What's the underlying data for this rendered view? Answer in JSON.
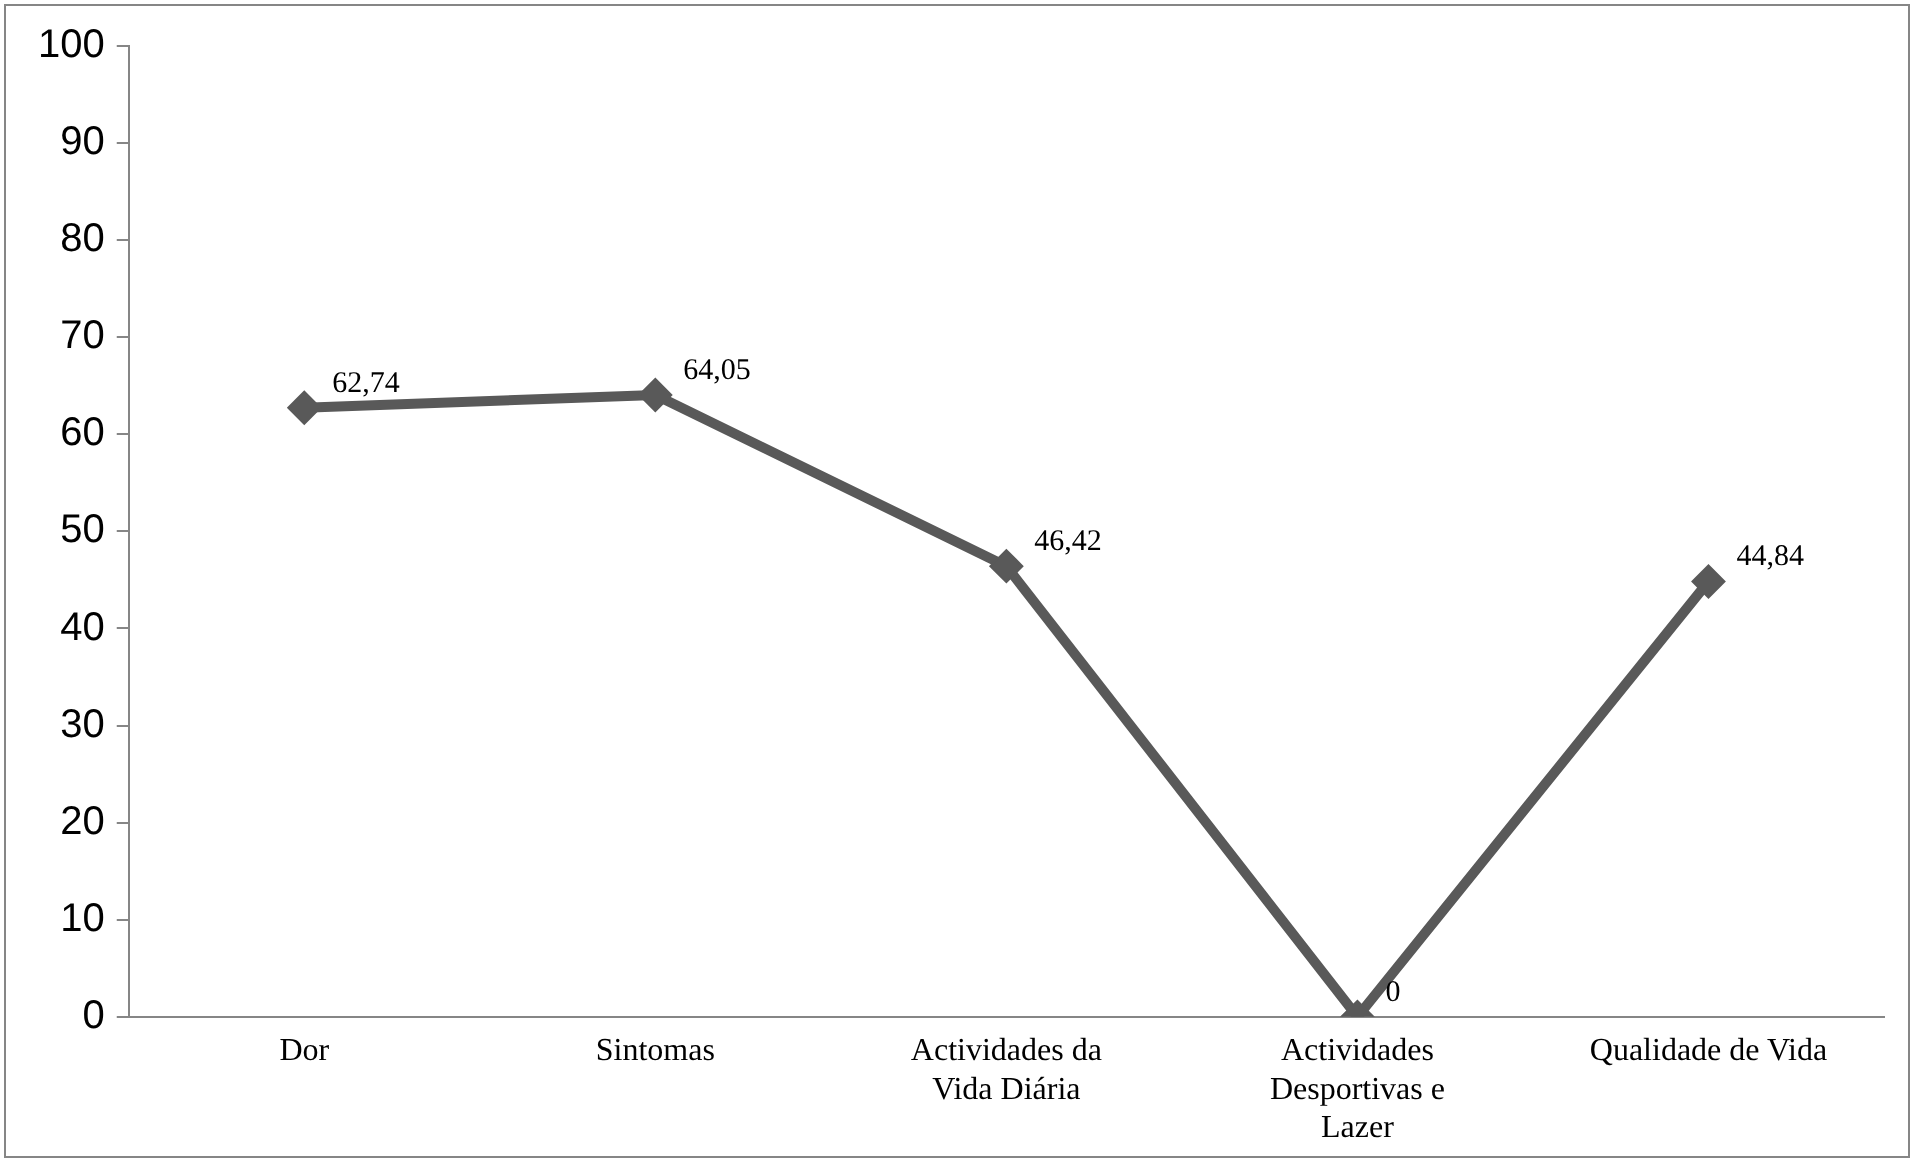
{
  "chart_data": {
    "type": "line",
    "categories": [
      "Dor",
      "Sintomas",
      "Actividades da Vida Diária",
      "Actividades Desportivas e Lazer",
      "Qualidade de Vida"
    ],
    "series": [
      {
        "color": "#595959",
        "values": [
          62.74,
          64.05,
          46.42,
          0,
          44.84
        ]
      }
    ],
    "value_labels": [
      "62,74",
      "64,05",
      "46,42",
      "0",
      "44,84"
    ],
    "ylim": [
      0,
      100
    ],
    "yticks": [
      0,
      10,
      20,
      30,
      40,
      50,
      60,
      70,
      80,
      90,
      100
    ],
    "grid": false,
    "legend": false,
    "marker": "diamond",
    "line_style": "solid"
  }
}
